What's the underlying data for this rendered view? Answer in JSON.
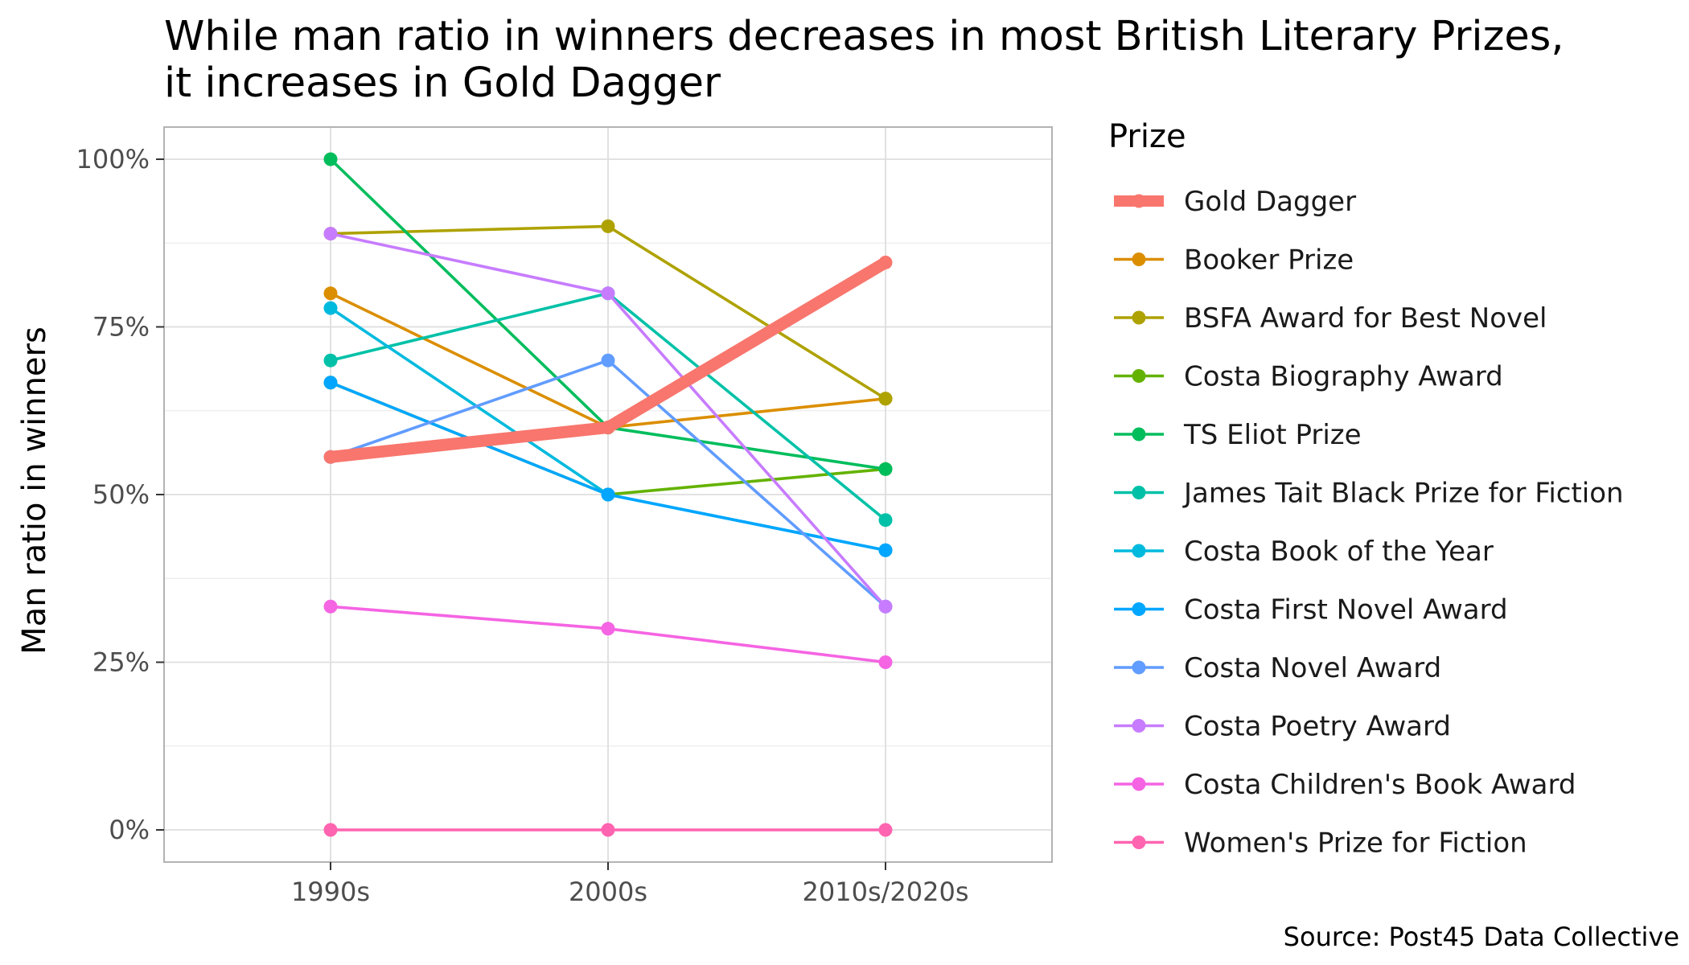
{
  "chart_data": {
    "type": "line",
    "title_lines": [
      "While man ratio in winners decreases in most British Literary Prizes,",
      "it increases in Gold Dagger"
    ],
    "xlabel": "",
    "ylabel": "Man ratio in winners",
    "categories": [
      "1990s",
      "2000s",
      "2010s/2020s"
    ],
    "y_ticks": [
      "0%",
      "25%",
      "50%",
      "75%",
      "100%"
    ],
    "ylim": [
      0,
      1
    ],
    "grid": true,
    "legend_position": "right",
    "legend_title": "Prize",
    "caption": "Source: Post45 Data Collective",
    "series": [
      {
        "name": "Gold Dagger",
        "color": "#F8766D",
        "highlight": true,
        "values": [
          0.556,
          0.6,
          0.846
        ]
      },
      {
        "name": "Booker Prize",
        "color": "#DB8E00",
        "values": [
          0.8,
          0.6,
          0.643
        ]
      },
      {
        "name": "BSFA Award for Best Novel",
        "color": "#AEA200",
        "values": [
          0.889,
          0.9,
          0.643
        ]
      },
      {
        "name": "Costa Biography Award",
        "color": "#64B200",
        "values": [
          0.667,
          0.5,
          0.538
        ]
      },
      {
        "name": "TS Eliot Prize",
        "color": "#00BD5C",
        "values": [
          1.0,
          0.6,
          0.538
        ]
      },
      {
        "name": "James Tait Black Prize for Fiction",
        "color": "#00C1A7",
        "values": [
          0.7,
          0.8,
          0.462
        ]
      },
      {
        "name": "Costa Book of the Year",
        "color": "#00BADE",
        "values": [
          0.778,
          0.5,
          0.417
        ]
      },
      {
        "name": "Costa First Novel Award",
        "color": "#00A6FF",
        "values": [
          0.667,
          0.5,
          0.417
        ]
      },
      {
        "name": "Costa Novel Award",
        "color": "#619CFF",
        "values": [
          0.556,
          0.7,
          0.333
        ]
      },
      {
        "name": "Costa Poetry Award",
        "color": "#C77CFF",
        "values": [
          0.889,
          0.8,
          0.333
        ]
      },
      {
        "name": "Costa Children's Book Award",
        "color": "#F564E3",
        "values": [
          0.333,
          0.3,
          0.25
        ]
      },
      {
        "name": "Women's Prize for Fiction",
        "color": "#FF64B0",
        "values": [
          0,
          0,
          0
        ]
      }
    ]
  }
}
